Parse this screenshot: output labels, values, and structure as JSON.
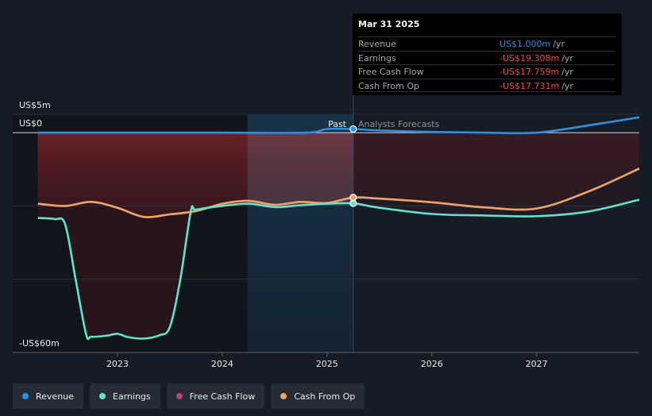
{
  "chart_data": {
    "type": "line",
    "x_ticks": [
      "2023",
      "2024",
      "2025",
      "2026",
      "2027"
    ],
    "x_range": [
      2022.0,
      2027.98
    ],
    "y_tick_labels": {
      "top": "US$5m",
      "zero": "US$0",
      "bottom": "-US$60m"
    },
    "y_range": [
      -60,
      5
    ],
    "grid": true,
    "divider_x": 2025.25,
    "regions": {
      "past": "Past",
      "forecast": "Analysts Forecasts"
    },
    "series": [
      {
        "name": "Revenue",
        "color": "#2f8fdf",
        "points": [
          [
            2022.24,
            0
          ],
          [
            2023,
            0
          ],
          [
            2024,
            0
          ],
          [
            2024.8,
            0
          ],
          [
            2025.0,
            1.0
          ],
          [
            2025.25,
            1.0
          ],
          [
            2025.5,
            0.6
          ],
          [
            2026,
            0.2
          ],
          [
            2026.5,
            0
          ],
          [
            2027,
            0
          ],
          [
            2027.5,
            2.0
          ],
          [
            2027.98,
            4.2
          ]
        ]
      },
      {
        "name": "Earnings",
        "color": "#62e3cc",
        "points": [
          [
            2022.24,
            -23.3
          ],
          [
            2022.4,
            -23.6
          ],
          [
            2022.5,
            -25
          ],
          [
            2022.6,
            -40
          ],
          [
            2022.7,
            -55
          ],
          [
            2022.75,
            -55.7
          ],
          [
            2022.9,
            -55.4
          ],
          [
            2023.0,
            -54.9
          ],
          [
            2023.1,
            -55.8
          ],
          [
            2023.25,
            -56.2
          ],
          [
            2023.4,
            -55.3
          ],
          [
            2023.5,
            -53
          ],
          [
            2023.6,
            -40
          ],
          [
            2023.7,
            -21.5
          ],
          [
            2023.75,
            -21.0
          ],
          [
            2024,
            -20.0
          ],
          [
            2024.25,
            -19.4
          ],
          [
            2024.5,
            -20.3
          ],
          [
            2024.75,
            -19.8
          ],
          [
            2025.0,
            -19.4
          ],
          [
            2025.25,
            -19.3
          ],
          [
            2025.5,
            -20.5
          ],
          [
            2026,
            -22.2
          ],
          [
            2026.5,
            -22.6
          ],
          [
            2027,
            -22.8
          ],
          [
            2027.5,
            -21.5
          ],
          [
            2027.98,
            -18.3
          ]
        ]
      },
      {
        "name": "Free Cash Flow",
        "color": "#b0447a",
        "points": [
          [
            2022.24,
            -19.4
          ],
          [
            2022.5,
            -20.0
          ],
          [
            2022.75,
            -18.9
          ],
          [
            2023.0,
            -20.5
          ],
          [
            2023.25,
            -23.0
          ],
          [
            2023.5,
            -22.3
          ],
          [
            2023.75,
            -21.4
          ],
          [
            2024,
            -19.4
          ],
          [
            2024.25,
            -18.6
          ],
          [
            2024.5,
            -19.7
          ],
          [
            2024.75,
            -18.9
          ],
          [
            2025.0,
            -19.2
          ],
          [
            2025.25,
            -17.8
          ],
          [
            2025.5,
            -18.0
          ],
          [
            2026,
            -19.0
          ],
          [
            2026.5,
            -20.4
          ],
          [
            2027,
            -20.7
          ],
          [
            2027.5,
            -16.0
          ],
          [
            2027.98,
            -9.8
          ]
        ]
      },
      {
        "name": "Cash From Op",
        "color": "#eaa464",
        "points": [
          [
            2022.24,
            -19.4
          ],
          [
            2022.5,
            -20.0
          ],
          [
            2022.75,
            -18.9
          ],
          [
            2023.0,
            -20.5
          ],
          [
            2023.25,
            -23.0
          ],
          [
            2023.5,
            -22.3
          ],
          [
            2023.75,
            -21.4
          ],
          [
            2024,
            -19.4
          ],
          [
            2024.25,
            -18.6
          ],
          [
            2024.5,
            -19.7
          ],
          [
            2024.75,
            -18.9
          ],
          [
            2025.0,
            -19.2
          ],
          [
            2025.25,
            -17.7
          ],
          [
            2025.5,
            -18.0
          ],
          [
            2026,
            -19.0
          ],
          [
            2026.5,
            -20.4
          ],
          [
            2027,
            -20.7
          ],
          [
            2027.5,
            -16.0
          ],
          [
            2027.98,
            -9.8
          ]
        ]
      }
    ]
  },
  "tooltip": {
    "date": "Mar 31 2025",
    "rows": [
      {
        "label": "Revenue",
        "value": "US$1.000m",
        "unit": "/yr",
        "color": "#2f8fdf"
      },
      {
        "label": "Earnings",
        "value": "-US$19.308m",
        "unit": "/yr",
        "color": "#f04848"
      },
      {
        "label": "Free Cash Flow",
        "value": "-US$17.759m",
        "unit": "/yr",
        "color": "#f04848"
      },
      {
        "label": "Cash From Op",
        "value": "-US$17.731m",
        "unit": "/yr",
        "color": "#f04848"
      }
    ]
  },
  "legend": [
    {
      "label": "Revenue",
      "color": "#2f8fdf"
    },
    {
      "label": "Earnings",
      "color": "#62e3cc"
    },
    {
      "label": "Free Cash Flow",
      "color": "#b0447a"
    },
    {
      "label": "Cash From Op",
      "color": "#eaa464"
    }
  ]
}
